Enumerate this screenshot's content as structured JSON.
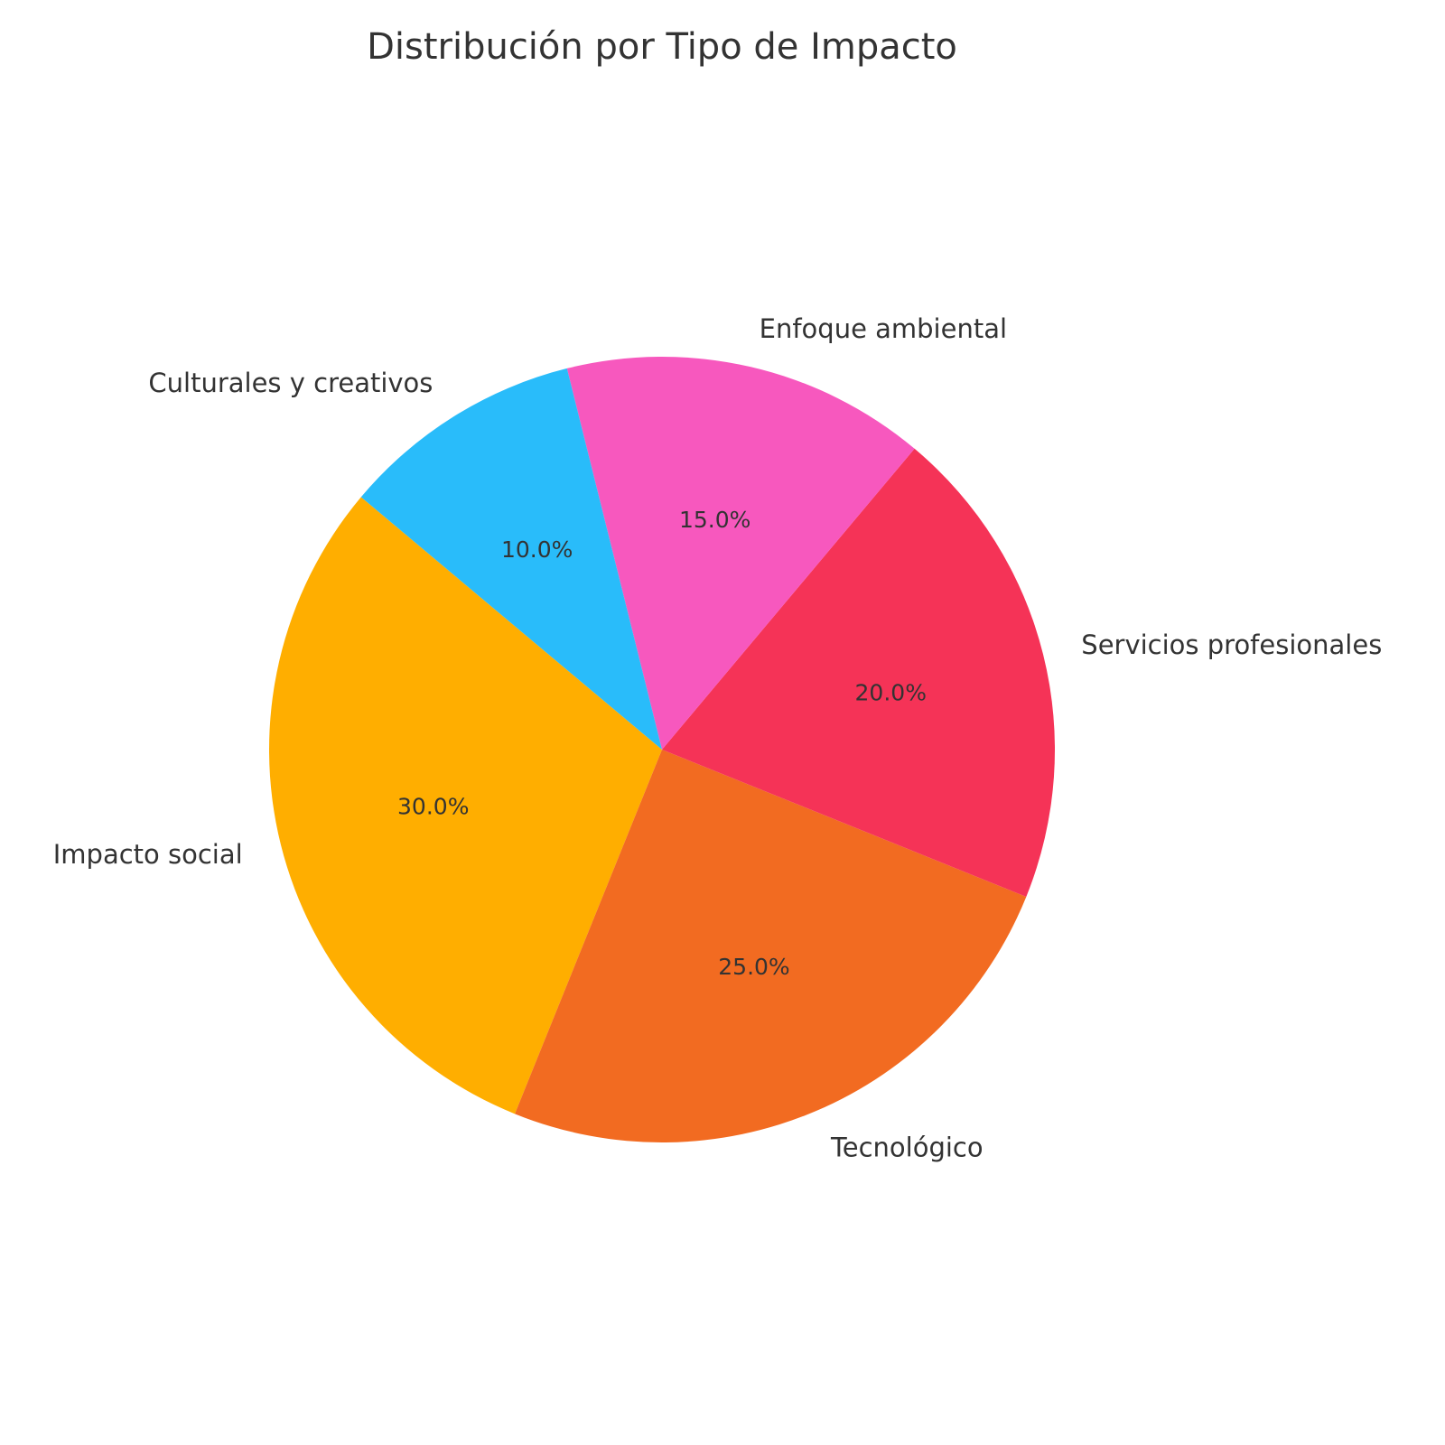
{
  "chart_data": {
    "type": "pie",
    "title": "Distribución por Tipo de Impacto",
    "categories": [
      "Impacto social",
      "Tecnológico",
      "Servicios profesionales",
      "Enfoque ambiental",
      "Culturales y creativos"
    ],
    "values": [
      30,
      25,
      20,
      15,
      10
    ],
    "percent_labels": [
      "30.0%",
      "25.0%",
      "20.0%",
      "15.0%",
      "10.0%"
    ],
    "colors": [
      "#FFAE00",
      "#F26B21",
      "#F53357",
      "#F758BE",
      "#29BCFA"
    ],
    "start_angle_deg": 140,
    "direction": "counterclockwise",
    "legend": "none",
    "grid": false
  }
}
